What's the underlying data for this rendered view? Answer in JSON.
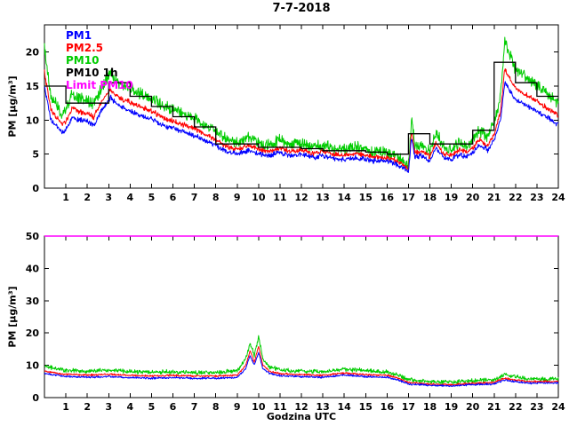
{
  "chart_data": [
    {
      "type": "line",
      "title": "7-7-2018",
      "xlabel": "",
      "ylabel": "PM [µg/m³]",
      "xlim": [
        0,
        24
      ],
      "ylim": [
        0,
        24
      ],
      "xticks": [
        1,
        2,
        3,
        4,
        5,
        6,
        7,
        8,
        9,
        10,
        11,
        12,
        13,
        14,
        15,
        16,
        17,
        18,
        19,
        20,
        21,
        22,
        23,
        24
      ],
      "yticks": [
        0,
        5,
        10,
        15,
        20
      ],
      "grid": false,
      "show_legend": true,
      "legend_position": "upper-left",
      "anchors_x": [
        0,
        0.3,
        0.6,
        0.8,
        1.0,
        1.3,
        1.6,
        2.0,
        2.3,
        2.6,
        2.9,
        3.1,
        3.4,
        3.7,
        4.0,
        4.3,
        4.6,
        5.0,
        5.3,
        5.6,
        6.0,
        6.5,
        7.0,
        7.5,
        8.0,
        8.5,
        9.0,
        9.5,
        10.0,
        10.5,
        11.0,
        11.5,
        12.0,
        12.5,
        13.0,
        13.5,
        14.0,
        14.5,
        15.0,
        15.5,
        16.0,
        16.4,
        16.8,
        17.0,
        17.15,
        17.3,
        17.6,
        18.0,
        18.3,
        18.6,
        19.0,
        19.4,
        19.7,
        20.0,
        20.3,
        20.7,
        21.0,
        21.3,
        21.5,
        21.8,
        22.0,
        22.3,
        22.6,
        23.0,
        23.4,
        23.7,
        24.0
      ],
      "series": [
        {
          "name": "PM1",
          "color": "#0000ff",
          "noise": 0.45,
          "zorder": 3,
          "anchors_y": [
            15,
            10,
            9,
            8.2,
            8.5,
            10.5,
            10,
            9.8,
            9.2,
            11,
            12.5,
            13.3,
            12.2,
            11.8,
            11.4,
            11,
            10.6,
            10.2,
            9.6,
            9.2,
            8.8,
            8.3,
            7.8,
            7,
            6.3,
            5.4,
            5,
            5.6,
            5,
            4.8,
            5.2,
            4.8,
            5,
            4.5,
            4.8,
            4.4,
            4.2,
            4.5,
            4.2,
            4,
            4,
            3.6,
            2.8,
            2.4,
            7.5,
            4.5,
            4.8,
            4,
            6,
            4.5,
            4.2,
            5,
            4.6,
            5.2,
            6.3,
            5.6,
            7,
            10,
            15.5,
            14,
            13,
            12.5,
            12,
            11.3,
            10.5,
            10,
            9.3
          ]
        },
        {
          "name": "PM2.5",
          "color": "#ff0000",
          "noise": 0.45,
          "zorder": 2,
          "anchors_y": [
            17,
            11.5,
            10.3,
            9.5,
            9.8,
            11.8,
            11.3,
            11,
            10.4,
            12.3,
            13.8,
            14.6,
            13.4,
            13,
            12.6,
            12.2,
            11.8,
            11.4,
            10.8,
            10.3,
            9.9,
            9.3,
            8.8,
            7.9,
            7.1,
            6.1,
            5.7,
            6.3,
            5.7,
            5.4,
            5.9,
            5.4,
            5.6,
            5.1,
            5.4,
            5,
            4.8,
            5.1,
            4.8,
            4.5,
            4.5,
            4.1,
            3.2,
            2.8,
            8.5,
            5.1,
            5.4,
            4.6,
            6.8,
            5.1,
            4.8,
            5.7,
            5.2,
            5.9,
            7.1,
            6.3,
            7.9,
            11.2,
            17.5,
            15.8,
            14.7,
            14.1,
            13.5,
            12.8,
            11.9,
            11.3,
            10.5
          ]
        },
        {
          "name": "PM10",
          "color": "#00cc00",
          "noise": 1.0,
          "zorder": 1,
          "anchors_y": [
            20.5,
            13.5,
            12,
            11,
            11.5,
            13.8,
            13.2,
            12.8,
            12.2,
            14.3,
            16,
            16.8,
            15.5,
            15,
            14.6,
            14.2,
            13.8,
            13.3,
            12.6,
            12,
            11.6,
            10.9,
            10.3,
            9.3,
            8.4,
            7.2,
            6.7,
            7.5,
            6.7,
            6.4,
            7,
            6.4,
            6.6,
            6,
            6.4,
            5.9,
            5.7,
            6,
            5.7,
            5.4,
            5.3,
            4.9,
            3.9,
            3.4,
            10.5,
            6.1,
            6.4,
            5.5,
            8.2,
            6.1,
            5.7,
            6.8,
            6.2,
            7,
            8.5,
            7.5,
            9.5,
            13.5,
            21.5,
            19,
            17.5,
            16.8,
            16,
            15.2,
            14.2,
            13.4,
            12.5
          ]
        },
        {
          "name": "PM10 1h",
          "color": "#000000",
          "type": "step",
          "zorder": 4,
          "hourly": [
            15,
            12.5,
            12.5,
            15.5,
            13.5,
            12,
            10.5,
            9,
            6.5,
            6.5,
            6,
            6,
            5.8,
            5.5,
            5.5,
            5.3,
            5,
            8,
            6.5,
            6.5,
            8.5,
            18.5,
            15.5,
            13.5
          ]
        },
        {
          "name": "Limit PM10",
          "color": "#ff00ff",
          "type": "hline",
          "value": 50,
          "zorder": 5
        }
      ]
    },
    {
      "type": "line",
      "title": "",
      "xlabel": "Godzina UTC",
      "ylabel": "PM [µg/m³]",
      "xlim": [
        0,
        24
      ],
      "ylim": [
        0,
        50
      ],
      "xticks": [
        1,
        2,
        3,
        4,
        5,
        6,
        7,
        8,
        9,
        10,
        11,
        12,
        13,
        14,
        15,
        16,
        17,
        18,
        19,
        20,
        21,
        22,
        23,
        24
      ],
      "yticks": [
        0,
        10,
        20,
        30,
        40,
        50
      ],
      "grid": false,
      "show_legend": false,
      "anchors_x": [
        0,
        1,
        2,
        3,
        4,
        5,
        6,
        7,
        8,
        9,
        9.4,
        9.6,
        9.8,
        10,
        10.2,
        10.5,
        11,
        12,
        13,
        14,
        14.5,
        15,
        16,
        16.5,
        17,
        18,
        19,
        20,
        21,
        21.5,
        22,
        22.5,
        23,
        24
      ],
      "series": [
        {
          "name": "PM1",
          "color": "#0000ff",
          "noise": 0.35,
          "zorder": 3,
          "anchors_y": [
            7.5,
            6.5,
            6.3,
            6.5,
            6.2,
            6,
            6.2,
            6,
            6,
            6.2,
            9,
            13,
            10,
            14,
            9,
            7.5,
            6.8,
            6.5,
            6.3,
            7,
            6.8,
            6.5,
            6.3,
            5.5,
            4.2,
            3.8,
            3.6,
            4,
            4.2,
            5.5,
            5,
            4.5,
            4.5,
            4.5
          ]
        },
        {
          "name": "PM2.5",
          "color": "#ff0000",
          "noise": 0.35,
          "zorder": 2,
          "anchors_y": [
            8.2,
            7.2,
            7,
            7.2,
            6.9,
            6.7,
            6.9,
            6.7,
            6.7,
            6.9,
            10,
            14.5,
            11,
            16,
            10,
            8.2,
            7.4,
            7.1,
            6.9,
            7.6,
            7.4,
            7.1,
            6.9,
            6,
            4.7,
            4.2,
            4,
            4.4,
            4.7,
            6,
            5.5,
            5,
            5,
            5
          ]
        },
        {
          "name": "PM10",
          "color": "#00cc00",
          "noise": 0.8,
          "zorder": 1,
          "anchors_y": [
            9.5,
            8.5,
            8.2,
            8.5,
            8,
            7.8,
            8,
            7.8,
            7.8,
            8.2,
            12,
            17,
            13,
            19,
            12,
            9.5,
            8.6,
            8.3,
            8,
            8.8,
            8.6,
            8.3,
            8,
            7,
            5.5,
            5,
            4.8,
            5.2,
            5.5,
            7,
            6.5,
            5.8,
            5.8,
            5.8
          ]
        },
        {
          "name": "Limit PM10",
          "color": "#ff00ff",
          "type": "hline",
          "value": 50,
          "zorder": 5
        }
      ]
    }
  ]
}
